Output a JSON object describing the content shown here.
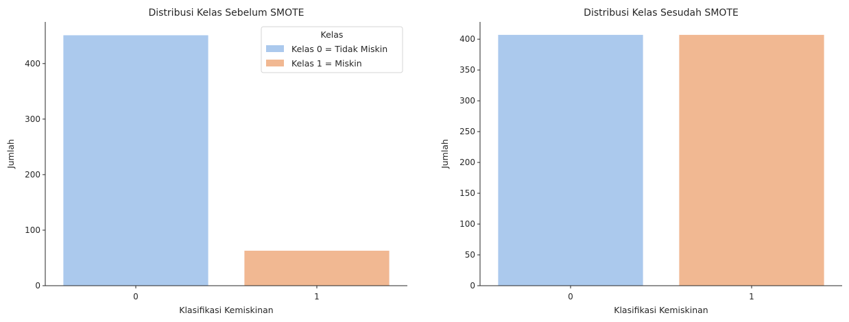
{
  "chart_data": [
    {
      "type": "bar",
      "title": "Distribusi Kelas Sebelum SMOTE",
      "xlabel": "Klasifikasi Kemiskinan",
      "ylabel": "Jumlah",
      "categories": [
        "0",
        "1"
      ],
      "values": [
        451,
        63
      ],
      "colors": [
        "#abc9ed",
        "#f1b892"
      ],
      "ylim": [
        0,
        475
      ],
      "yticks": [
        0,
        100,
        200,
        300,
        400
      ],
      "legend": {
        "title": "Kelas",
        "position": "top-right",
        "entries": [
          "Kelas 0 = Tidak Miskin",
          "Kelas 1 = Miskin"
        ]
      }
    },
    {
      "type": "bar",
      "title": "Distribusi Kelas Sesudah SMOTE",
      "xlabel": "Klasifikasi Kemiskinan",
      "ylabel": "Jumlah",
      "categories": [
        "0",
        "1"
      ],
      "values": [
        407,
        407
      ],
      "colors": [
        "#abc9ed",
        "#f1b892"
      ],
      "ylim": [
        0,
        428
      ],
      "yticks": [
        0,
        50,
        100,
        150,
        200,
        250,
        300,
        350,
        400
      ]
    }
  ]
}
